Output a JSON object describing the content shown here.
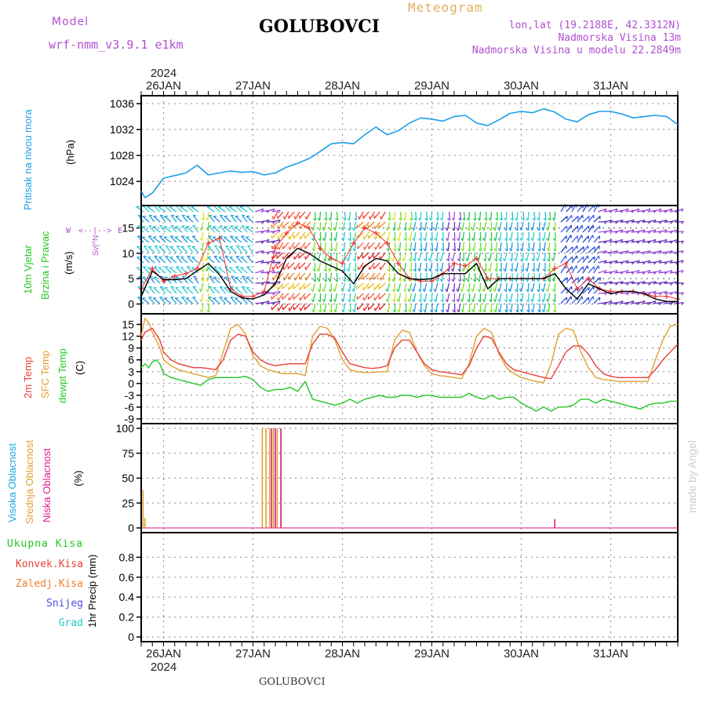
{
  "header": {
    "model_label": "Model",
    "model_name": "wrf-nmm_v3.9.1 e1km",
    "station": "GOLUBOVCI",
    "product": "Meteogram",
    "coords": "lon,lat (19.2188E, 42.3312N)",
    "elevation": "Nadmorska Visina 13m",
    "model_elevation": "Nadmorska Visina u modelu 22.2849m"
  },
  "footer": {
    "station": "GOLUBOVCI",
    "watermark": "made by Angel"
  },
  "time_axis": {
    "year": "2024",
    "days": [
      "26JAN",
      "27JAN",
      "28JAN",
      "29JAN",
      "30JAN",
      "31JAN"
    ],
    "start_hour_offset": -6,
    "hours": 144,
    "day_ticks_hours": [
      0,
      24,
      48,
      72,
      96,
      120
    ]
  },
  "panel_labels": {
    "pressure": [
      "Pritisak na nivou mora",
      "(hPa)"
    ],
    "wind": [
      "10m Vjetar",
      "Brzina i Pravac",
      "(m/s)"
    ],
    "wind_compass": [
      "W",
      "<--|-->",
      "E",
      "N",
      "^",
      "|",
      "v",
      "S"
    ],
    "temp": [
      "2m Temp",
      "SFC Temp",
      "dewpt Temp",
      "(C)"
    ],
    "cloud": [
      "Visoka Oblacnost",
      "Srednja Oblacnost",
      "Niska Oblacnost",
      "(%)"
    ],
    "precip": [
      "Ukupna Kisa",
      "Konvek.Kisa",
      "Zaledj.Kisa",
      "Snijeg",
      "Grad",
      "1hr Precip (mm)"
    ]
  },
  "colors": {
    "pressure": "#1e9ee8",
    "temp2m": "#e8413a",
    "sfc": "#e0a030",
    "dewpt": "#22c822",
    "high_cloud": "#18a8e0",
    "mid_cloud": "#e0a030",
    "low_cloud": "#e01c8c",
    "total_rain": "#22c822",
    "conv_rain": "#e8413a",
    "freezing_rain": "#f08030",
    "snow": "#5050e0",
    "hail": "#20c8c8",
    "gust": "#f03030",
    "wind_speed": "#000000"
  },
  "chart_data": [
    {
      "type": "line",
      "panel": "pressure",
      "ylabel": "(hPa)",
      "ylim": [
        1021,
        1036.5
      ],
      "yticks": [
        1024,
        1028,
        1032,
        1036
      ],
      "grid": true,
      "series": [
        {
          "name": "Pritisak na nivou mora",
          "x": [
            -6,
            -5,
            -3,
            0,
            3,
            6,
            9,
            12,
            15,
            18,
            21,
            24,
            27,
            30,
            33,
            36,
            39,
            42,
            45,
            48,
            51,
            54,
            57,
            60,
            63,
            66,
            69,
            72,
            75,
            78,
            81,
            84,
            87,
            90,
            93,
            96,
            99,
            102,
            105,
            108,
            111,
            114,
            117,
            120,
            123,
            126,
            129,
            132,
            135,
            138
          ],
          "values": [
            1022.5,
            1021.5,
            1022.2,
            1024.5,
            1024.9,
            1025.3,
            1026.5,
            1025.0,
            1025.3,
            1025.6,
            1025.4,
            1025.5,
            1025.0,
            1025.3,
            1026.2,
            1026.8,
            1027.5,
            1028.6,
            1029.8,
            1030.0,
            1029.8,
            1031.2,
            1032.4,
            1031.2,
            1031.8,
            1033.0,
            1033.8,
            1033.6,
            1033.3,
            1034.0,
            1034.2,
            1033.0,
            1032.6,
            1033.5,
            1034.5,
            1034.8,
            1034.6,
            1035.2,
            1034.7,
            1033.6,
            1033.2,
            1034.3,
            1034.8,
            1034.8,
            1034.4,
            1033.8,
            1034.0,
            1034.2,
            1034.0,
            1032.8
          ]
        }
      ]
    },
    {
      "type": "line",
      "panel": "wind",
      "ylabel": "(m/s)",
      "ylim": [
        -1,
        18.5
      ],
      "yticks": [
        0,
        5,
        10,
        15
      ],
      "grid": true,
      "series": [
        {
          "name": "speed",
          "x": [
            -6,
            -3,
            0,
            3,
            6,
            9,
            12,
            15,
            18,
            21,
            24,
            27,
            30,
            33,
            36,
            39,
            42,
            45,
            48,
            51,
            54,
            57,
            60,
            63,
            66,
            69,
            72,
            75,
            78,
            81,
            84,
            87,
            90,
            93,
            96,
            99,
            102,
            105,
            108,
            111,
            114,
            117,
            120,
            123,
            126,
            129,
            132,
            135,
            138
          ],
          "values": [
            1.5,
            6.5,
            4.8,
            4.8,
            5.0,
            6.5,
            8.0,
            5.8,
            2.5,
            1.2,
            1.0,
            1.8,
            4.0,
            9.0,
            11.0,
            10.0,
            8.5,
            7.5,
            6.5,
            4.0,
            7.5,
            9.0,
            8.5,
            6.0,
            5.0,
            4.8,
            5.0,
            6.0,
            6.0,
            6.0,
            8.0,
            3.0,
            5.0,
            5.0,
            5.0,
            5.0,
            5.0,
            6.0,
            3.0,
            1.0,
            4.0,
            3.0,
            2.0,
            2.5,
            2.5,
            2.0,
            1.0,
            0.5,
            0.5
          ]
        },
        {
          "name": "gust",
          "x": [
            -6,
            -3,
            0,
            3,
            6,
            9,
            12,
            15,
            18,
            21,
            24,
            27,
            30,
            33,
            36,
            39,
            42,
            45,
            48,
            51,
            54,
            57,
            60,
            63,
            66,
            69,
            72,
            75,
            78,
            81,
            84,
            87,
            90,
            93,
            96,
            99,
            102,
            105,
            108,
            111,
            114,
            117,
            120,
            123,
            126,
            129,
            132,
            135,
            138
          ],
          "values": [
            3,
            7,
            4.5,
            5.5,
            6,
            7,
            12,
            13,
            3,
            1.5,
            1.5,
            2.5,
            11,
            14,
            16,
            15,
            11,
            9,
            8,
            12,
            15,
            14,
            12,
            8,
            5,
            4.5,
            4.5,
            6,
            8,
            7.5,
            9,
            5,
            5,
            5,
            5,
            5,
            5,
            7,
            8,
            3,
            5,
            3,
            2.5,
            2.5,
            2.5,
            2,
            1.5,
            1.5,
            1
          ]
        }
      ],
      "barbs": [
        {
          "x_range": [
            -6,
            10
          ],
          "direction": "nw",
          "color_scale": "cyan"
        },
        {
          "x_range": [
            10,
            13
          ],
          "direction": "s",
          "color_scale": "yellow-green"
        },
        {
          "x_range": [
            13,
            24
          ],
          "direction": "nw",
          "color_scale": "cyan"
        },
        {
          "x_range": [
            24,
            30
          ],
          "direction": "e",
          "color_scale": "purple"
        },
        {
          "x_range": [
            30,
            40
          ],
          "direction": "sw",
          "color_scale": "red-yellow"
        },
        {
          "x_range": [
            40,
            48
          ],
          "direction": "s",
          "color_scale": "green"
        },
        {
          "x_range": [
            48,
            53
          ],
          "direction": "s",
          "color_scale": "cyan-green"
        },
        {
          "x_range": [
            53,
            60
          ],
          "direction": "sw",
          "color_scale": "red-yellow"
        },
        {
          "x_range": [
            60,
            67
          ],
          "direction": "s",
          "color_scale": "green-yellow"
        },
        {
          "x_range": [
            67,
            76
          ],
          "direction": "s",
          "color_scale": "cyan"
        },
        {
          "x_range": [
            76,
            80
          ],
          "direction": "s",
          "color_scale": "purple"
        },
        {
          "x_range": [
            80,
            90
          ],
          "direction": "s",
          "color_scale": "green"
        },
        {
          "x_range": [
            90,
            103
          ],
          "direction": "s",
          "color_scale": "cyan"
        },
        {
          "x_range": [
            103,
            106
          ],
          "direction": "s",
          "color_scale": "green"
        },
        {
          "x_range": [
            106,
            116
          ],
          "direction": "ne",
          "color_scale": "blue"
        },
        {
          "x_range": [
            116,
            138
          ],
          "direction": "e",
          "color_scale": "purple"
        }
      ]
    },
    {
      "type": "line",
      "panel": "temperature",
      "ylabel": "(C)",
      "ylim": [
        -9,
        16.5
      ],
      "yticks": [
        -9,
        -6,
        -3,
        0,
        3,
        6,
        9,
        12,
        15
      ],
      "grid": true,
      "series": [
        {
          "name": "2m Temp",
          "x": [
            -6,
            -5,
            -3,
            -1,
            0,
            2,
            4,
            6,
            8,
            10,
            12,
            14,
            16,
            18,
            20,
            22,
            24,
            26,
            28,
            30,
            32,
            34,
            36,
            38,
            40,
            42,
            44,
            46,
            48,
            50,
            52,
            54,
            56,
            58,
            60,
            62,
            64,
            66,
            68,
            70,
            72,
            74,
            76,
            78,
            80,
            82,
            84,
            86,
            88,
            90,
            92,
            94,
            96,
            98,
            100,
            102,
            104,
            106,
            108,
            110,
            112,
            114,
            116,
            118,
            120,
            122,
            124,
            126,
            128,
            130,
            132,
            134,
            136,
            138
          ],
          "values": [
            11,
            13,
            14,
            11,
            8,
            6,
            5,
            4.5,
            4,
            4,
            3.8,
            3.5,
            6,
            11,
            12.5,
            12,
            8,
            6,
            5,
            4.5,
            4.8,
            5,
            5,
            5,
            10,
            12.5,
            12.5,
            11.5,
            8,
            5,
            4.5,
            4,
            3.8,
            4,
            4.5,
            9,
            11,
            11,
            8,
            5,
            3.5,
            3,
            2.8,
            2.5,
            2.2,
            4.5,
            9,
            12,
            11.5,
            8,
            5,
            3.5,
            3,
            2.5,
            2,
            1.5,
            1.2,
            4.5,
            8,
            9.5,
            9.5,
            7.5,
            4.5,
            2.5,
            1.8,
            1.5,
            1.5,
            1.5,
            1.5,
            1.5,
            3.5,
            6,
            8,
            10
          ]
        },
        {
          "name": "SFC Temp",
          "x": [
            -6,
            -5,
            -4,
            -3,
            -1,
            0,
            2,
            4,
            6,
            8,
            10,
            12,
            14,
            16,
            18,
            20,
            22,
            24,
            26,
            28,
            30,
            32,
            34,
            36,
            38,
            40,
            42,
            44,
            46,
            48,
            50,
            52,
            54,
            56,
            58,
            60,
            62,
            64,
            66,
            68,
            70,
            72,
            74,
            76,
            78,
            80,
            82,
            84,
            86,
            88,
            90,
            92,
            94,
            96,
            98,
            100,
            102,
            104,
            106,
            108,
            110,
            112,
            114,
            116,
            118,
            120,
            122,
            124,
            126,
            128,
            130,
            132,
            134,
            136,
            138
          ],
          "values": [
            12,
            16.5,
            15.5,
            13,
            9,
            6,
            4.5,
            3.5,
            3,
            2.5,
            2,
            1.5,
            2,
            8,
            14,
            15,
            12.5,
            7,
            4.5,
            3.5,
            3,
            2.5,
            2.5,
            2.5,
            2,
            12,
            14.5,
            14,
            11,
            6,
            3.5,
            3,
            2.8,
            2.8,
            3,
            3,
            11,
            13.5,
            13,
            8,
            4.5,
            2.5,
            2,
            1.8,
            1.5,
            1.2,
            5,
            12,
            14,
            13,
            7.5,
            4,
            2.5,
            1.5,
            1,
            0.5,
            0.2,
            5,
            12.5,
            14,
            13.5,
            8,
            4,
            1.5,
            1,
            0.8,
            0.5,
            0.5,
            0.5,
            0.5,
            0.5,
            6,
            11,
            14.5,
            15
          ]
        },
        {
          "name": "dewpt Temp",
          "x": [
            -6,
            -5,
            -4,
            -3,
            -2,
            -1,
            0,
            2,
            4,
            6,
            8,
            10,
            12,
            14,
            16,
            18,
            20,
            22,
            24,
            26,
            28,
            30,
            32,
            34,
            36,
            38,
            40,
            42,
            44,
            46,
            48,
            50,
            52,
            54,
            56,
            58,
            60,
            62,
            64,
            66,
            68,
            70,
            72,
            74,
            76,
            78,
            80,
            82,
            84,
            86,
            88,
            90,
            92,
            94,
            96,
            98,
            100,
            102,
            104,
            106,
            108,
            110,
            112,
            114,
            116,
            118,
            120,
            122,
            124,
            126,
            128,
            130,
            132,
            134,
            136,
            138
          ],
          "values": [
            4,
            5,
            4,
            5.5,
            6,
            5,
            2.5,
            1.5,
            1,
            0.5,
            0,
            -0.5,
            1,
            1.5,
            1.5,
            1.5,
            1.5,
            1.8,
            1,
            -1,
            -2,
            -1.5,
            -1.5,
            -1,
            -2,
            0.5,
            -4,
            -4.5,
            -5,
            -5.5,
            -5,
            -4,
            -5,
            -4,
            -3.5,
            -3,
            -3.5,
            -3.5,
            -3,
            -3,
            -3.5,
            -3,
            -3,
            -3.5,
            -3.5,
            -3.5,
            -3.5,
            -2.5,
            -3.5,
            -4,
            -3,
            -4,
            -3.5,
            -3.5,
            -5,
            -6,
            -7,
            -6,
            -7,
            -6,
            -6,
            -5.5,
            -4,
            -4,
            -5,
            -4,
            -4.5,
            -5,
            -5.5,
            -6,
            -6.5,
            -5.5,
            -5,
            -5,
            -4.5,
            -4.5
          ]
        }
      ]
    },
    {
      "type": "bar",
      "panel": "cloud",
      "ylabel": "(%)",
      "ylim": [
        0,
        100
      ],
      "yticks": [
        0,
        25,
        50,
        75,
        100
      ],
      "grid": true,
      "series": [
        {
          "name": "Srednja Oblacnost",
          "x": [
            -5.5,
            -5,
            26.5,
            27.5,
            28.5,
            29.5,
            30.5,
            31.5
          ],
          "values": [
            38,
            10,
            100,
            100,
            100,
            100,
            100,
            100
          ]
        },
        {
          "name": "Niska Oblacnost",
          "x": [
            29,
            30,
            31.5,
            105
          ],
          "values": [
            100,
            100,
            100,
            9
          ]
        },
        {
          "name": "Visoka Oblacnost",
          "x": [],
          "values": []
        }
      ]
    },
    {
      "type": "bar",
      "panel": "precip",
      "ylabel": "1hr Precip (mm)",
      "ylim": [
        0,
        1.0
      ],
      "yticks": [
        0,
        0.2,
        0.4,
        0.6,
        0.8
      ],
      "grid": true,
      "series": [
        {
          "name": "Ukupna Kisa",
          "x": [],
          "values": []
        },
        {
          "name": "Konvek.Kisa",
          "x": [],
          "values": []
        },
        {
          "name": "Zaledj.Kisa",
          "x": [],
          "values": []
        },
        {
          "name": "Snijeg",
          "x": [],
          "values": []
        },
        {
          "name": "Grad",
          "x": [],
          "values": []
        }
      ]
    }
  ]
}
